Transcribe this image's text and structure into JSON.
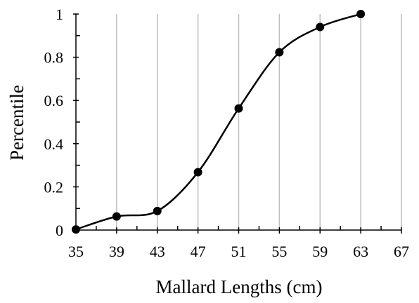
{
  "chart_data": {
    "type": "line",
    "xlabel": "Mallard Lengths (cm)",
    "ylabel": "Percentile",
    "x_ticks": [
      35,
      39,
      43,
      47,
      51,
      55,
      59,
      63,
      67
    ],
    "y_ticks": [
      0,
      0.2,
      0.4,
      0.6,
      0.8,
      1
    ],
    "x_tick_labels": [
      "35",
      "39",
      "43",
      "47",
      "51",
      "55",
      "59",
      "63",
      "67"
    ],
    "y_tick_labels": [
      "0",
      "0.2",
      "0.4",
      "0.6",
      "0.8",
      "1"
    ],
    "xlim": [
      35,
      67
    ],
    "ylim": [
      0,
      1
    ],
    "grid": "vertical",
    "legend": "none",
    "series": [
      {
        "x": [
          35,
          39,
          43,
          47,
          51,
          55,
          59,
          63
        ],
        "y": [
          0.003,
          0.063,
          0.088,
          0.268,
          0.563,
          0.823,
          0.94,
          1.0
        ]
      }
    ]
  }
}
